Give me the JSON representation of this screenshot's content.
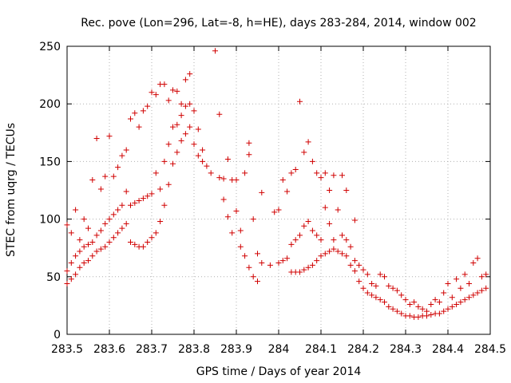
{
  "chart_data": {
    "type": "scatter",
    "title": "Rec. pove (Lon=296, Lat=-8, h=HE), days 283-284, 2014, window 002",
    "xlabel": "GPS time / Days of year 2014",
    "ylabel": "STEC from uqrg / TECUs",
    "xlim": [
      283.5,
      284.5
    ],
    "ylim": [
      0,
      250
    ],
    "x_ticks": [
      283.5,
      283.6,
      283.7,
      283.8,
      283.9,
      284.0,
      284.1,
      284.2,
      284.3,
      284.4,
      284.5
    ],
    "x_tick_labels": [
      "283.5",
      "283.6",
      "283.7",
      "283.8",
      "283.9",
      "284",
      "284.1",
      "284.2",
      "284.3",
      "284.4",
      "284.5"
    ],
    "y_ticks": [
      0,
      50,
      100,
      150,
      200,
      250
    ],
    "y_tick_labels": [
      "0",
      "50",
      "100",
      "150",
      "200",
      "250"
    ],
    "grid": true,
    "marker": "+",
    "color": "#d00000",
    "series": [
      {
        "points": [
          [
            283.5,
            44
          ],
          [
            283.5,
            55
          ],
          [
            283.5,
            95
          ],
          [
            283.51,
            48
          ],
          [
            283.51,
            62
          ],
          [
            283.51,
            88
          ],
          [
            283.52,
            52
          ],
          [
            283.52,
            68
          ],
          [
            283.52,
            108
          ],
          [
            283.53,
            58
          ],
          [
            283.53,
            72
          ],
          [
            283.53,
            82
          ],
          [
            283.54,
            62
          ],
          [
            283.54,
            76
          ],
          [
            283.54,
            100
          ],
          [
            283.55,
            64
          ],
          [
            283.55,
            78
          ],
          [
            283.55,
            92
          ],
          [
            283.56,
            68
          ],
          [
            283.56,
            80
          ],
          [
            283.56,
            134
          ],
          [
            283.57,
            72
          ],
          [
            283.57,
            86
          ],
          [
            283.57,
            170
          ],
          [
            283.58,
            74
          ],
          [
            283.58,
            90
          ],
          [
            283.58,
            126
          ],
          [
            283.59,
            76
          ],
          [
            283.59,
            96
          ],
          [
            283.59,
            137
          ],
          [
            283.6,
            80
          ],
          [
            283.6,
            100
          ],
          [
            283.6,
            172
          ],
          [
            283.61,
            84
          ],
          [
            283.61,
            104
          ],
          [
            283.61,
            137
          ],
          [
            283.62,
            88
          ],
          [
            283.62,
            108
          ],
          [
            283.62,
            145
          ],
          [
            283.63,
            92
          ],
          [
            283.63,
            112
          ],
          [
            283.63,
            155
          ],
          [
            283.64,
            96
          ],
          [
            283.64,
            124
          ],
          [
            283.64,
            160
          ],
          [
            283.65,
            80
          ],
          [
            283.65,
            112
          ],
          [
            283.65,
            187
          ],
          [
            283.66,
            78
          ],
          [
            283.66,
            114
          ],
          [
            283.66,
            192
          ],
          [
            283.67,
            76
          ],
          [
            283.67,
            116
          ],
          [
            283.67,
            180
          ],
          [
            283.68,
            76
          ],
          [
            283.68,
            118
          ],
          [
            283.68,
            194
          ],
          [
            283.69,
            80
          ],
          [
            283.69,
            120
          ],
          [
            283.69,
            198
          ],
          [
            283.7,
            84
          ],
          [
            283.7,
            122
          ],
          [
            283.7,
            210
          ],
          [
            283.71,
            88
          ],
          [
            283.71,
            140
          ],
          [
            283.71,
            208
          ],
          [
            283.72,
            98
          ],
          [
            283.72,
            126
          ],
          [
            283.72,
            217
          ],
          [
            283.73,
            112
          ],
          [
            283.73,
            150
          ],
          [
            283.73,
            217
          ],
          [
            283.74,
            130
          ],
          [
            283.74,
            165
          ],
          [
            283.74,
            203
          ],
          [
            283.75,
            148
          ],
          [
            283.75,
            180
          ],
          [
            283.75,
            212
          ],
          [
            283.76,
            158
          ],
          [
            283.76,
            182
          ],
          [
            283.76,
            211
          ],
          [
            283.77,
            168
          ],
          [
            283.77,
            190
          ],
          [
            283.77,
            200
          ],
          [
            283.78,
            174
          ],
          [
            283.78,
            198
          ],
          [
            283.78,
            221
          ],
          [
            283.79,
            180
          ],
          [
            283.79,
            200
          ],
          [
            283.79,
            226
          ],
          [
            283.8,
            165
          ],
          [
            283.8,
            194
          ],
          [
            283.81,
            155
          ],
          [
            283.81,
            178
          ],
          [
            283.82,
            150
          ],
          [
            283.82,
            160
          ],
          [
            283.83,
            146
          ],
          [
            283.84,
            140
          ],
          [
            283.85,
            246
          ],
          [
            283.86,
            136
          ],
          [
            283.86,
            191
          ],
          [
            283.87,
            117
          ],
          [
            283.87,
            135
          ],
          [
            283.88,
            102
          ],
          [
            283.88,
            152
          ],
          [
            283.89,
            88
          ],
          [
            283.89,
            134
          ],
          [
            283.9,
            107
          ],
          [
            283.9,
            134
          ],
          [
            283.91,
            76
          ],
          [
            283.91,
            90
          ],
          [
            283.92,
            68
          ],
          [
            283.92,
            140
          ],
          [
            283.93,
            58
          ],
          [
            283.93,
            156
          ],
          [
            283.93,
            166
          ],
          [
            283.94,
            50
          ],
          [
            283.94,
            100
          ],
          [
            283.95,
            46
          ],
          [
            283.95,
            70
          ],
          [
            283.96,
            62
          ],
          [
            283.96,
            123
          ],
          [
            283.98,
            60
          ],
          [
            283.99,
            106
          ],
          [
            284.0,
            62
          ],
          [
            284.0,
            108
          ],
          [
            284.01,
            64
          ],
          [
            284.01,
            134
          ],
          [
            284.02,
            66
          ],
          [
            284.02,
            124
          ],
          [
            284.03,
            54
          ],
          [
            284.03,
            78
          ],
          [
            284.03,
            140
          ],
          [
            284.04,
            54
          ],
          [
            284.04,
            82
          ],
          [
            284.04,
            143
          ],
          [
            284.05,
            54
          ],
          [
            284.05,
            86
          ],
          [
            284.05,
            202
          ],
          [
            284.06,
            56
          ],
          [
            284.06,
            94
          ],
          [
            284.06,
            158
          ],
          [
            284.07,
            58
          ],
          [
            284.07,
            98
          ],
          [
            284.07,
            167
          ],
          [
            284.08,
            60
          ],
          [
            284.08,
            90
          ],
          [
            284.08,
            150
          ],
          [
            284.09,
            64
          ],
          [
            284.09,
            86
          ],
          [
            284.09,
            140
          ],
          [
            284.1,
            68
          ],
          [
            284.1,
            82
          ],
          [
            284.1,
            136
          ],
          [
            284.11,
            70
          ],
          [
            284.11,
            110
          ],
          [
            284.11,
            140
          ],
          [
            284.12,
            72
          ],
          [
            284.12,
            96
          ],
          [
            284.12,
            125
          ],
          [
            284.13,
            74
          ],
          [
            284.13,
            82
          ],
          [
            284.13,
            138
          ],
          [
            284.14,
            72
          ],
          [
            284.14,
            108
          ],
          [
            284.15,
            70
          ],
          [
            284.15,
            86
          ],
          [
            284.15,
            138
          ],
          [
            284.16,
            68
          ],
          [
            284.16,
            82
          ],
          [
            284.16,
            125
          ],
          [
            284.17,
            60
          ],
          [
            284.17,
            76
          ],
          [
            284.18,
            55
          ],
          [
            284.18,
            64
          ],
          [
            284.18,
            99
          ],
          [
            284.19,
            46
          ],
          [
            284.19,
            60
          ],
          [
            284.2,
            40
          ],
          [
            284.2,
            56
          ],
          [
            284.21,
            36
          ],
          [
            284.21,
            52
          ],
          [
            284.22,
            34
          ],
          [
            284.22,
            44
          ],
          [
            284.23,
            32
          ],
          [
            284.23,
            42
          ],
          [
            284.24,
            30
          ],
          [
            284.24,
            52
          ],
          [
            284.25,
            28
          ],
          [
            284.25,
            50
          ],
          [
            284.26,
            24
          ],
          [
            284.26,
            42
          ],
          [
            284.27,
            22
          ],
          [
            284.27,
            40
          ],
          [
            284.28,
            20
          ],
          [
            284.28,
            38
          ],
          [
            284.29,
            18
          ],
          [
            284.29,
            34
          ],
          [
            284.3,
            16
          ],
          [
            284.3,
            30
          ],
          [
            284.31,
            16
          ],
          [
            284.31,
            26
          ],
          [
            284.32,
            15
          ],
          [
            284.32,
            28
          ],
          [
            284.33,
            15
          ],
          [
            284.33,
            24
          ],
          [
            284.34,
            16
          ],
          [
            284.34,
            22
          ],
          [
            284.35,
            16
          ],
          [
            284.35,
            20
          ],
          [
            284.36,
            17
          ],
          [
            284.36,
            26
          ],
          [
            284.37,
            18
          ],
          [
            284.37,
            30
          ],
          [
            284.38,
            18
          ],
          [
            284.38,
            28
          ],
          [
            284.39,
            20
          ],
          [
            284.39,
            36
          ],
          [
            284.4,
            22
          ],
          [
            284.4,
            44
          ],
          [
            284.41,
            24
          ],
          [
            284.41,
            32
          ],
          [
            284.42,
            26
          ],
          [
            284.42,
            48
          ],
          [
            284.43,
            28
          ],
          [
            284.43,
            40
          ],
          [
            284.44,
            30
          ],
          [
            284.44,
            52
          ],
          [
            284.45,
            32
          ],
          [
            284.45,
            44
          ],
          [
            284.46,
            34
          ],
          [
            284.46,
            62
          ],
          [
            284.47,
            36
          ],
          [
            284.47,
            66
          ],
          [
            284.48,
            38
          ],
          [
            284.48,
            50
          ],
          [
            284.49,
            40
          ],
          [
            284.49,
            52
          ]
        ]
      }
    ]
  }
}
